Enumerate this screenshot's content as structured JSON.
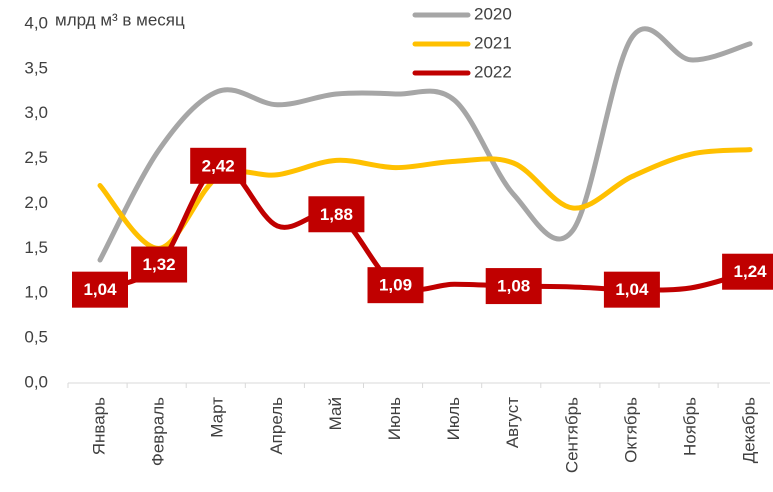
{
  "chart_data": {
    "type": "line",
    "y_label": "млрд м³ в месяц",
    "categories": [
      "Январь",
      "Февраль",
      "Март",
      "Апрель",
      "Май",
      "Июнь",
      "Июль",
      "Август",
      "Сентябрь",
      "Октябрь",
      "Ноябрь",
      "Декабрь"
    ],
    "series": [
      {
        "name": "2020",
        "color": "#a6a6a6",
        "values": [
          1.37,
          2.6,
          3.25,
          3.1,
          3.22,
          3.22,
          3.15,
          2.1,
          1.7,
          3.85,
          3.6,
          3.78
        ]
      },
      {
        "name": "2021",
        "color": "#ffc000",
        "values": [
          2.2,
          1.5,
          2.3,
          2.32,
          2.48,
          2.4,
          2.47,
          2.45,
          1.95,
          2.3,
          2.55,
          2.6
        ]
      },
      {
        "name": "2022",
        "color": "#c00000",
        "values": [
          1.04,
          1.32,
          2.42,
          1.75,
          1.88,
          1.09,
          1.1,
          1.08,
          1.07,
          1.04,
          1.06,
          1.24
        ],
        "value_labels": [
          "1,04",
          "1,32",
          "2,42",
          null,
          "1,88",
          "1,09",
          null,
          "1,08",
          null,
          "1,04",
          null,
          "1,24"
        ]
      }
    ],
    "ylim": [
      0,
      4
    ],
    "yticks": [
      {
        "value": 0,
        "label": "0,0"
      },
      {
        "value": 0.5,
        "label": "0,5"
      },
      {
        "value": 1,
        "label": "1,0"
      },
      {
        "value": 1.5,
        "label": "1,5"
      },
      {
        "value": 2,
        "label": "2,0"
      },
      {
        "value": 2.5,
        "label": "2,5"
      },
      {
        "value": 3,
        "label": "3,0"
      },
      {
        "value": 3.5,
        "label": "3,5"
      },
      {
        "value": 4,
        "label": "4,0"
      }
    ],
    "legend": "top"
  }
}
